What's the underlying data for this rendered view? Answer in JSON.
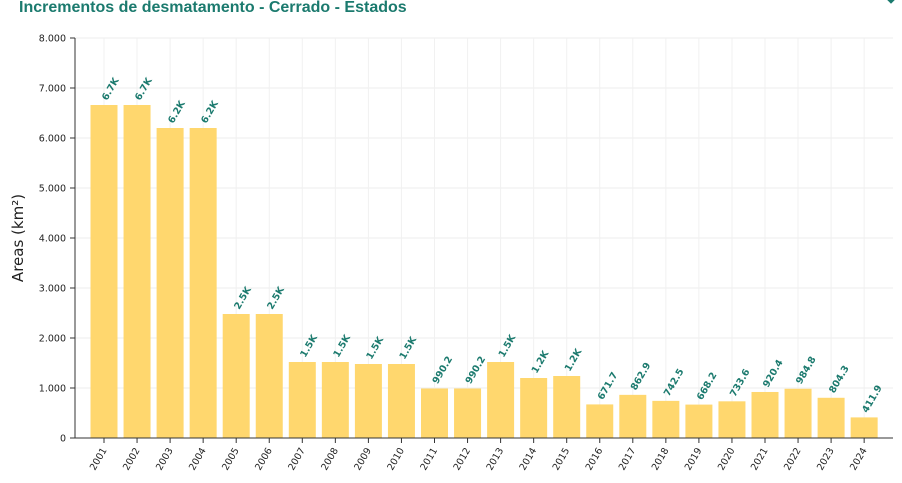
{
  "title": "Incrementos de desmatamento - Cerrado - Estados",
  "icons": {
    "corner": "chevron-down-icon"
  },
  "colors": {
    "bar": "#ffd76e",
    "label": "#1b7a6e",
    "title": "#1b7a6e"
  },
  "chart_data": {
    "type": "bar",
    "title": "Incrementos de desmatamento - Cerrado - Estados",
    "xlabel": "",
    "ylabel": "Areas (km²)",
    "ylim": [
      0,
      8000
    ],
    "yticks": [
      0,
      1000,
      2000,
      3000,
      4000,
      5000,
      6000,
      7000,
      8000
    ],
    "ytick_labels": [
      "0",
      "1.000",
      "2.000",
      "3.000",
      "4.000",
      "5.000",
      "6.000",
      "7.000",
      "8.000"
    ],
    "grid": true,
    "categories": [
      "2001",
      "2002",
      "2003",
      "2004",
      "2005",
      "2006",
      "2007",
      "2008",
      "2009",
      "2010",
      "2011",
      "2012",
      "2013",
      "2014",
      "2015",
      "2016",
      "2017",
      "2018",
      "2019",
      "2020",
      "2021",
      "2022",
      "2023",
      "2024"
    ],
    "values": [
      6660,
      6660,
      6200,
      6200,
      2480,
      2480,
      1520,
      1520,
      1480,
      1480,
      990.2,
      990.2,
      1520,
      1200,
      1240,
      671.7,
      862.9,
      742.5,
      668.2,
      733.6,
      920.4,
      984.8,
      804.3,
      411.9
    ],
    "data_labels": [
      "6.7K",
      "6.7K",
      "6.2K",
      "6.2K",
      "2.5K",
      "2.5K",
      "1.5K",
      "1.5K",
      "1.5K",
      "1.5K",
      "990.2",
      "990.2",
      "1.5K",
      "1.2K",
      "1.2K",
      "671.7",
      "862.9",
      "742.5",
      "668.2",
      "733.6",
      "920.4",
      "984.8",
      "804.3",
      "411.9"
    ]
  }
}
